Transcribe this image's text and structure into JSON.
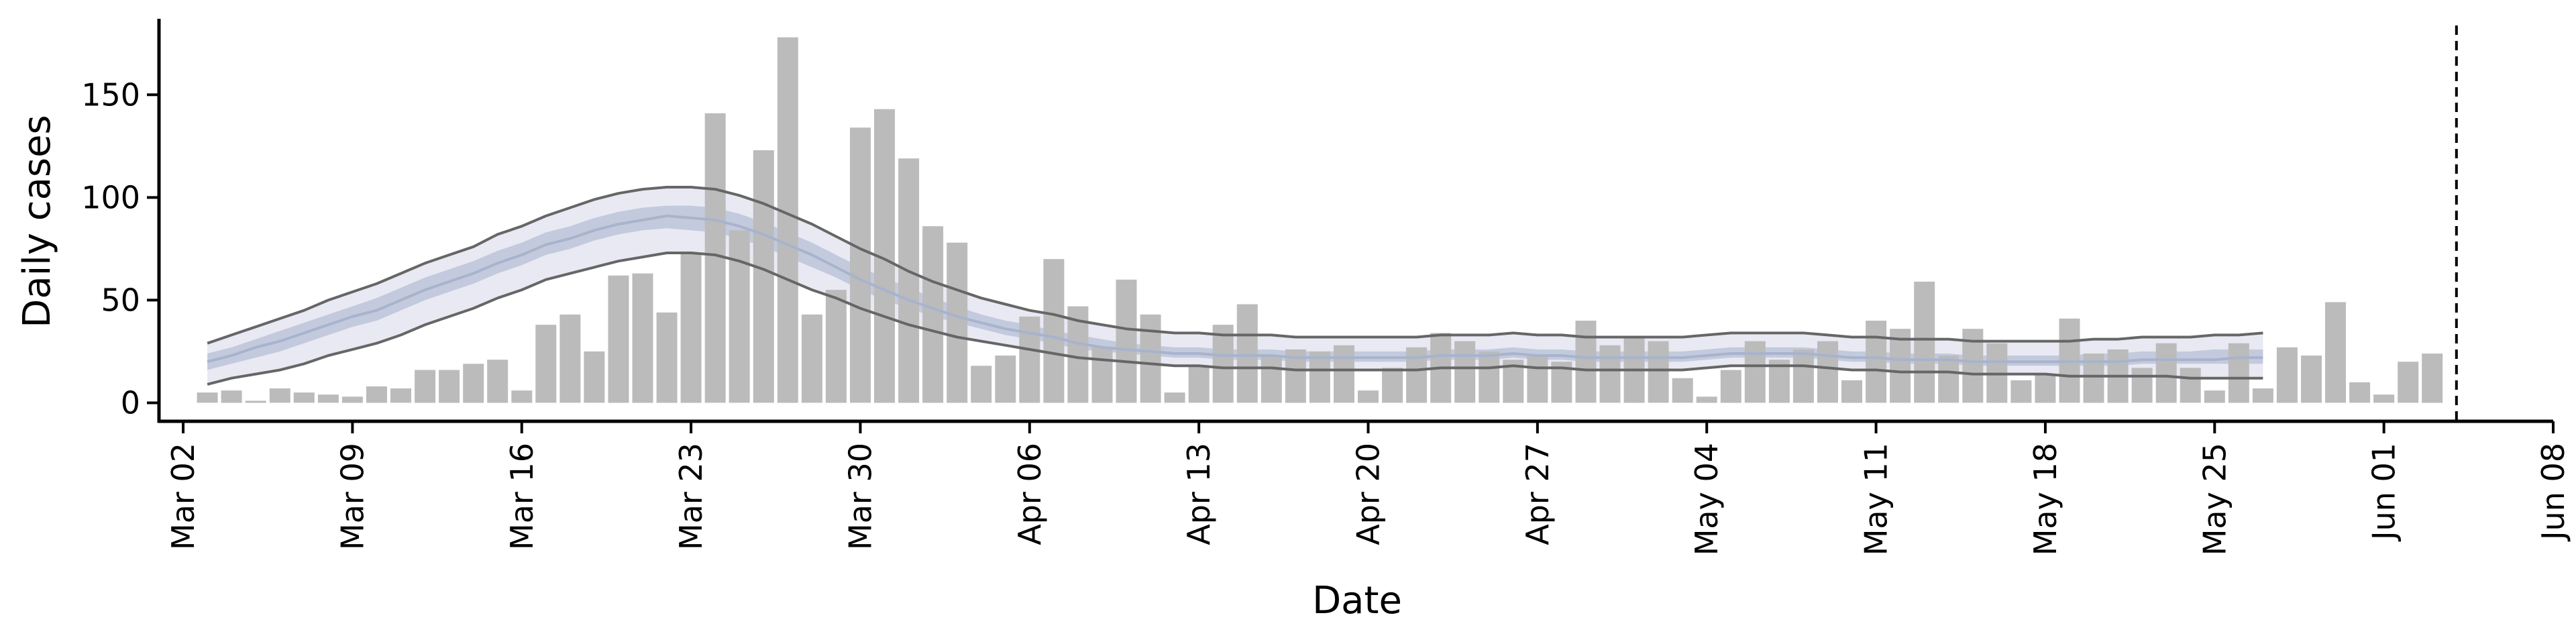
{
  "chart_data": {
    "type": "bar",
    "title": "",
    "xlabel": "Date",
    "ylabel": "Daily cases",
    "x_start": "2020-03-03",
    "xlim": [
      "2020-03-01",
      "2020-06-08"
    ],
    "ylim": [
      -9,
      187
    ],
    "y_ticks": [
      0,
      50,
      100,
      150
    ],
    "x_ticks": [
      {
        "date": "2020-03-02",
        "label": "Mar 02"
      },
      {
        "date": "2020-03-09",
        "label": "Mar 09"
      },
      {
        "date": "2020-03-16",
        "label": "Mar 16"
      },
      {
        "date": "2020-03-23",
        "label": "Mar 23"
      },
      {
        "date": "2020-03-30",
        "label": "Mar 30"
      },
      {
        "date": "2020-04-06",
        "label": "Apr 06"
      },
      {
        "date": "2020-04-13",
        "label": "Apr 13"
      },
      {
        "date": "2020-04-20",
        "label": "Apr 20"
      },
      {
        "date": "2020-04-27",
        "label": "Apr 27"
      },
      {
        "date": "2020-05-04",
        "label": "May 04"
      },
      {
        "date": "2020-05-11",
        "label": "May 11"
      },
      {
        "date": "2020-05-18",
        "label": "May 18"
      },
      {
        "date": "2020-05-25",
        "label": "May 25"
      },
      {
        "date": "2020-06-01",
        "label": "Jun 01"
      },
      {
        "date": "2020-06-08",
        "label": "Jun 08"
      }
    ],
    "bar_color": "#bbbbbb",
    "daily_cases": [
      5,
      6,
      1,
      7,
      5,
      4,
      3,
      8,
      7,
      16,
      16,
      19,
      21,
      6,
      38,
      43,
      25,
      62,
      63,
      44,
      73,
      141,
      84,
      123,
      178,
      43,
      55,
      134,
      143,
      119,
      86,
      78,
      18,
      23,
      42,
      70,
      47,
      27,
      60,
      43,
      5,
      18,
      38,
      48,
      23,
      26,
      25,
      28,
      6,
      17,
      27,
      34,
      30,
      25,
      21,
      23,
      20,
      40,
      28,
      32,
      30,
      12,
      3,
      16,
      30,
      21,
      26,
      30,
      11,
      40,
      36,
      59,
      23,
      36,
      29,
      11,
      14,
      41,
      24,
      26,
      17,
      29,
      17,
      6,
      29,
      7,
      27,
      23,
      49,
      10,
      4,
      20,
      24
    ],
    "model": {
      "end_date": "2020-05-26",
      "outer_band_color": "#e8e9f2",
      "inner_band_color": "#c3cadd",
      "median_color": "#a8b3cc",
      "bound_line_color": "#666666",
      "median": [
        20,
        23,
        27,
        30,
        34,
        38,
        42,
        45,
        50,
        55,
        59,
        63,
        68,
        72,
        77,
        80,
        84,
        87,
        89,
        91,
        90,
        89,
        86,
        82,
        77,
        72,
        66,
        60,
        55,
        50,
        46,
        42,
        39,
        36,
        34,
        32,
        29,
        27,
        26,
        25,
        24,
        24,
        23,
        23,
        23,
        22,
        22,
        22,
        22,
        22,
        22,
        23,
        23,
        23,
        24,
        23,
        23,
        22,
        22,
        22,
        22,
        22,
        23,
        24,
        24,
        24,
        24,
        23,
        22,
        22,
        21,
        21,
        21,
        20,
        20,
        20,
        20,
        20,
        20,
        20,
        21,
        21,
        21,
        21,
        22,
        22
      ],
      "inner_lower": [
        16,
        19,
        22,
        25,
        29,
        33,
        37,
        40,
        45,
        50,
        54,
        58,
        63,
        67,
        72,
        75,
        79,
        82,
        84,
        85,
        84,
        83,
        80,
        76,
        71,
        66,
        61,
        55,
        50,
        46,
        42,
        39,
        36,
        33,
        31,
        29,
        26,
        25,
        24,
        23,
        22,
        22,
        21,
        21,
        21,
        20,
        20,
        20,
        20,
        20,
        20,
        21,
        21,
        21,
        22,
        21,
        21,
        20,
        20,
        20,
        20,
        20,
        21,
        22,
        22,
        22,
        22,
        21,
        20,
        20,
        19,
        19,
        19,
        18,
        18,
        18,
        18,
        18,
        18,
        18,
        19,
        19,
        19,
        19,
        19,
        19
      ],
      "inner_upper": [
        24,
        27,
        31,
        35,
        39,
        43,
        47,
        51,
        56,
        61,
        65,
        69,
        74,
        78,
        83,
        86,
        90,
        93,
        95,
        96,
        96,
        95,
        92,
        88,
        83,
        78,
        72,
        66,
        61,
        56,
        51,
        47,
        43,
        40,
        38,
        35,
        33,
        31,
        29,
        28,
        27,
        27,
        26,
        26,
        26,
        25,
        25,
        25,
        25,
        25,
        25,
        26,
        26,
        26,
        27,
        26,
        26,
        25,
        25,
        25,
        25,
        25,
        26,
        27,
        27,
        27,
        27,
        26,
        25,
        25,
        24,
        24,
        24,
        23,
        23,
        23,
        23,
        23,
        24,
        24,
        25,
        25,
        25,
        26,
        26,
        26
      ],
      "lower": [
        9,
        12,
        14,
        16,
        19,
        23,
        26,
        29,
        33,
        38,
        42,
        46,
        51,
        55,
        60,
        63,
        66,
        69,
        71,
        73,
        73,
        72,
        69,
        65,
        60,
        55,
        51,
        46,
        42,
        38,
        35,
        32,
        30,
        28,
        26,
        24,
        22,
        21,
        20,
        19,
        18,
        18,
        17,
        17,
        17,
        16,
        16,
        16,
        16,
        16,
        16,
        17,
        17,
        17,
        18,
        17,
        17,
        16,
        16,
        16,
        16,
        16,
        17,
        18,
        18,
        18,
        18,
        17,
        16,
        16,
        15,
        15,
        15,
        14,
        14,
        14,
        14,
        13,
        13,
        13,
        13,
        13,
        12,
        12,
        12,
        12
      ],
      "upper": [
        29,
        33,
        37,
        41,
        45,
        50,
        54,
        58,
        63,
        68,
        72,
        76,
        82,
        86,
        91,
        95,
        99,
        102,
        104,
        105,
        105,
        104,
        101,
        97,
        92,
        87,
        81,
        75,
        70,
        64,
        59,
        55,
        51,
        48,
        45,
        43,
        40,
        38,
        36,
        35,
        34,
        34,
        33,
        33,
        33,
        32,
        32,
        32,
        32,
        32,
        32,
        33,
        33,
        33,
        34,
        33,
        33,
        32,
        32,
        32,
        32,
        32,
        33,
        34,
        34,
        34,
        34,
        33,
        32,
        32,
        31,
        31,
        31,
        30,
        30,
        30,
        30,
        30,
        31,
        31,
        32,
        32,
        32,
        33,
        33,
        34
      ]
    },
    "marker": {
      "date": "2020-06-04",
      "style": "dashed",
      "color": "#000000"
    },
    "grid": false
  }
}
